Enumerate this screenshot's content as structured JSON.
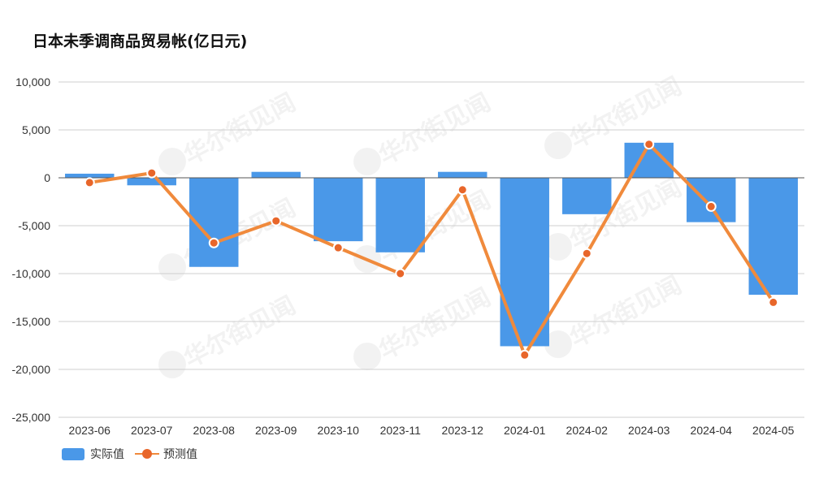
{
  "chart_data": {
    "type": "bar",
    "title": "日本未季调商品贸易帐(亿日元)",
    "categories": [
      "2023-06",
      "2023-07",
      "2023-08",
      "2023-09",
      "2023-10",
      "2023-11",
      "2023-12",
      "2024-01",
      "2024-02",
      "2024-03",
      "2024-04",
      "2024-05"
    ],
    "series": [
      {
        "name": "实际值",
        "type": "bar",
        "color": "#4A98E8",
        "values": [
          430,
          -785,
          -9300,
          620,
          -6620,
          -7780,
          620,
          -17580,
          -3800,
          3660,
          -4630,
          -12210
        ]
      },
      {
        "name": "预测值",
        "type": "line",
        "color": "#F08A3C",
        "marker_color": "#E8662A",
        "values": [
          -500,
          500,
          -6800,
          -4500,
          -7300,
          -10000,
          -1250,
          -18500,
          -7900,
          3500,
          -3000,
          -13000
        ]
      }
    ],
    "ylim": [
      -25000,
      10000
    ],
    "yticks": [
      10000,
      5000,
      0,
      -5000,
      -10000,
      -15000,
      -20000,
      -25000
    ],
    "ytick_labels": [
      "10,000",
      "5,000",
      "0",
      "-5,000",
      "-10,000",
      "-15,000",
      "-20,000",
      "-25,000"
    ],
    "grid": true,
    "legend_position": "bottom-left"
  },
  "watermark": "华尔街见闻"
}
